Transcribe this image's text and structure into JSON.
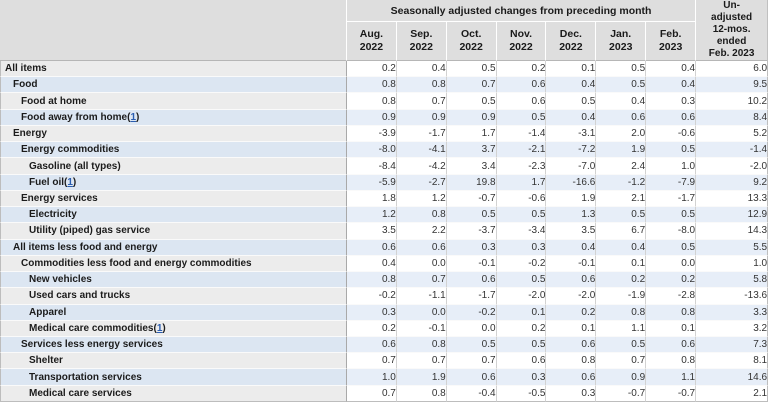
{
  "table": {
    "header": {
      "group_label": "Seasonally adjusted changes from preceding month",
      "months": [
        "Aug.\n2022",
        "Sep.\n2022",
        "Oct.\n2022",
        "Nov.\n2022",
        "Dec.\n2022",
        "Jan.\n2023",
        "Feb.\n2023"
      ],
      "unadjusted_label": "Un-\nadjusted\n12-mos.\nended\nFeb. 2023"
    },
    "rows": [
      {
        "label": "All items",
        "level": 0,
        "footnote": null,
        "values": [
          "0.2",
          "0.4",
          "0.5",
          "0.2",
          "0.1",
          "0.5",
          "0.4",
          "6.0"
        ]
      },
      {
        "label": "Food",
        "level": 1,
        "footnote": null,
        "values": [
          "0.8",
          "0.8",
          "0.7",
          "0.6",
          "0.4",
          "0.5",
          "0.4",
          "9.5"
        ]
      },
      {
        "label": "Food at home",
        "level": 2,
        "footnote": null,
        "values": [
          "0.8",
          "0.7",
          "0.5",
          "0.6",
          "0.5",
          "0.4",
          "0.3",
          "10.2"
        ]
      },
      {
        "label": "Food away from home",
        "level": 2,
        "footnote": "1",
        "values": [
          "0.9",
          "0.9",
          "0.9",
          "0.5",
          "0.4",
          "0.6",
          "0.6",
          "8.4"
        ]
      },
      {
        "label": "Energy",
        "level": 1,
        "footnote": null,
        "values": [
          "-3.9",
          "-1.7",
          "1.7",
          "-1.4",
          "-3.1",
          "2.0",
          "-0.6",
          "5.2"
        ]
      },
      {
        "label": "Energy commodities",
        "level": 2,
        "footnote": null,
        "values": [
          "-8.0",
          "-4.1",
          "3.7",
          "-2.1",
          "-7.2",
          "1.9",
          "0.5",
          "-1.4"
        ]
      },
      {
        "label": "Gasoline (all types)",
        "level": 3,
        "footnote": null,
        "values": [
          "-8.4",
          "-4.2",
          "3.4",
          "-2.3",
          "-7.0",
          "2.4",
          "1.0",
          "-2.0"
        ]
      },
      {
        "label": "Fuel oil",
        "level": 3,
        "footnote": "1",
        "values": [
          "-5.9",
          "-2.7",
          "19.8",
          "1.7",
          "-16.6",
          "-1.2",
          "-7.9",
          "9.2"
        ]
      },
      {
        "label": "Energy services",
        "level": 2,
        "footnote": null,
        "values": [
          "1.8",
          "1.2",
          "-0.7",
          "-0.6",
          "1.9",
          "2.1",
          "-1.7",
          "13.3"
        ]
      },
      {
        "label": "Electricity",
        "level": 3,
        "footnote": null,
        "values": [
          "1.2",
          "0.8",
          "0.5",
          "0.5",
          "1.3",
          "0.5",
          "0.5",
          "12.9"
        ]
      },
      {
        "label": "Utility (piped) gas service",
        "level": 3,
        "footnote": null,
        "values": [
          "3.5",
          "2.2",
          "-3.7",
          "-3.4",
          "3.5",
          "6.7",
          "-8.0",
          "14.3"
        ]
      },
      {
        "label": "All items less food and energy",
        "level": 1,
        "footnote": null,
        "values": [
          "0.6",
          "0.6",
          "0.3",
          "0.3",
          "0.4",
          "0.4",
          "0.5",
          "5.5"
        ]
      },
      {
        "label": "Commodities less food and energy commodities",
        "level": 2,
        "footnote": null,
        "values": [
          "0.4",
          "0.0",
          "-0.1",
          "-0.2",
          "-0.1",
          "0.1",
          "0.0",
          "1.0"
        ]
      },
      {
        "label": "New vehicles",
        "level": 3,
        "footnote": null,
        "values": [
          "0.8",
          "0.7",
          "0.6",
          "0.5",
          "0.6",
          "0.2",
          "0.2",
          "5.8"
        ]
      },
      {
        "label": "Used cars and trucks",
        "level": 3,
        "footnote": null,
        "values": [
          "-0.2",
          "-1.1",
          "-1.7",
          "-2.0",
          "-2.0",
          "-1.9",
          "-2.8",
          "-13.6"
        ]
      },
      {
        "label": "Apparel",
        "level": 3,
        "footnote": null,
        "values": [
          "0.3",
          "0.0",
          "-0.2",
          "0.1",
          "0.2",
          "0.8",
          "0.8",
          "3.3"
        ]
      },
      {
        "label": "Medical care commodities",
        "level": 3,
        "footnote": "1",
        "values": [
          "0.2",
          "-0.1",
          "0.0",
          "0.2",
          "0.1",
          "1.1",
          "0.1",
          "3.2"
        ]
      },
      {
        "label": "Services less energy services",
        "level": 2,
        "footnote": null,
        "values": [
          "0.6",
          "0.8",
          "0.5",
          "0.5",
          "0.6",
          "0.5",
          "0.6",
          "7.3"
        ]
      },
      {
        "label": "Shelter",
        "level": 3,
        "footnote": null,
        "values": [
          "0.7",
          "0.7",
          "0.7",
          "0.6",
          "0.8",
          "0.7",
          "0.8",
          "8.1"
        ]
      },
      {
        "label": "Transportation services",
        "level": 3,
        "footnote": null,
        "values": [
          "1.0",
          "1.9",
          "0.6",
          "0.3",
          "0.6",
          "0.9",
          "1.1",
          "14.6"
        ]
      },
      {
        "label": "Medical care services",
        "level": 3,
        "footnote": null,
        "values": [
          "0.7",
          "0.8",
          "-0.4",
          "-0.5",
          "0.3",
          "-0.7",
          "-0.7",
          "2.1"
        ]
      }
    ]
  },
  "colors": {
    "header_background": "#dedede",
    "stripe_gray_stub": "#ececec",
    "stripe_blue_stub": "#dce6f2",
    "stripe_blue_cell": "#e7eef8",
    "footnote_link_blue": "#2a5db0"
  }
}
